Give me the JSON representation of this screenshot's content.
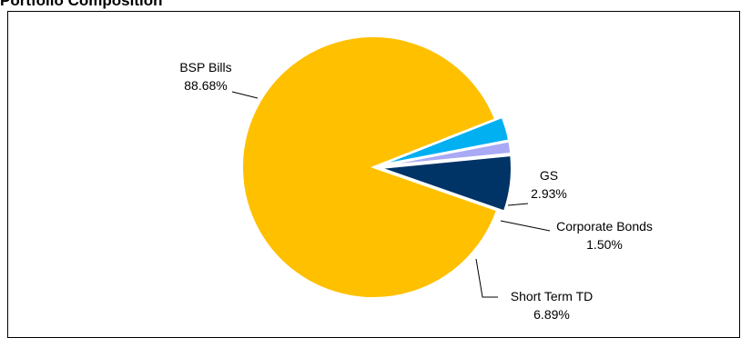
{
  "chart_data": {
    "type": "pie",
    "title": "Portfolio Composition",
    "slices": [
      {
        "label": "BSP Bills",
        "value": 88.68,
        "value_label": "88.68%",
        "color": "#FFC000"
      },
      {
        "label": "GS",
        "value": 2.93,
        "value_label": "2.93%",
        "color": "#00B0F0"
      },
      {
        "label": "Corporate Bonds",
        "value": 1.5,
        "value_label": "1.50%",
        "color": "#A9A9F5"
      },
      {
        "label": "Short Term TD",
        "value": 6.89,
        "value_label": "6.89%",
        "color": "#003366"
      }
    ],
    "exploded_slices": [
      "GS",
      "Corporate Bonds",
      "Short Term TD"
    ],
    "legend": "none",
    "data_labels": "outside with leader lines"
  }
}
